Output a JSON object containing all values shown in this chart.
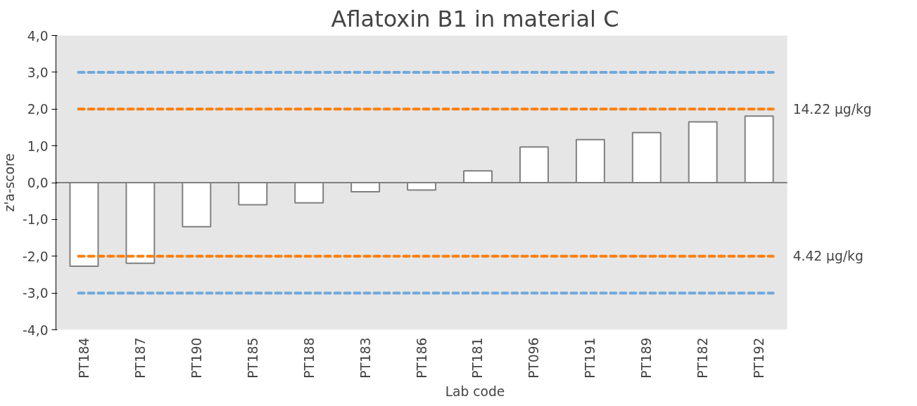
{
  "chart_data": {
    "type": "bar",
    "title": "Aflatoxin B1 in material C",
    "xlabel": "Lab code",
    "ylabel": "z'a-score",
    "categories": [
      "PT184",
      "PT187",
      "PT190",
      "PT185",
      "PT188",
      "PT183",
      "PT186",
      "PT181",
      "PT096",
      "PT191",
      "PT189",
      "PT182",
      "PT192"
    ],
    "values": [
      -2.27,
      -2.19,
      -1.2,
      -0.6,
      -0.55,
      -0.25,
      -0.2,
      0.32,
      0.97,
      1.17,
      1.36,
      1.65,
      1.81
    ],
    "color": "#ffffff",
    "ylim": [
      -4,
      4
    ],
    "yticks": [
      {
        "value": -4,
        "label": "-4,0"
      },
      {
        "value": -3,
        "label": "-3,0"
      },
      {
        "value": -2,
        "label": "-2,0"
      },
      {
        "value": -1,
        "label": "-1,0"
      },
      {
        "value": 0,
        "label": "0,0"
      },
      {
        "value": 1,
        "label": "1,0"
      },
      {
        "value": 2,
        "label": "2,0"
      },
      {
        "value": 3,
        "label": "3,0"
      },
      {
        "value": 4,
        "label": "4,0"
      }
    ],
    "ref_lines": [
      {
        "axis": "y",
        "value": 3,
        "label": null,
        "color": "#6fa8dc",
        "line_style": "dashed"
      },
      {
        "axis": "y",
        "value": 2,
        "label": "14.22 µg/kg",
        "color": "#ff7f0e",
        "line_style": "dashed"
      },
      {
        "axis": "y",
        "value": -2,
        "label": "4.42 µg/kg",
        "color": "#ff7f0e",
        "line_style": "dashed"
      },
      {
        "axis": "y",
        "value": -3,
        "label": null,
        "color": "#6fa8dc",
        "line_style": "dashed"
      }
    ],
    "marker": "none"
  }
}
